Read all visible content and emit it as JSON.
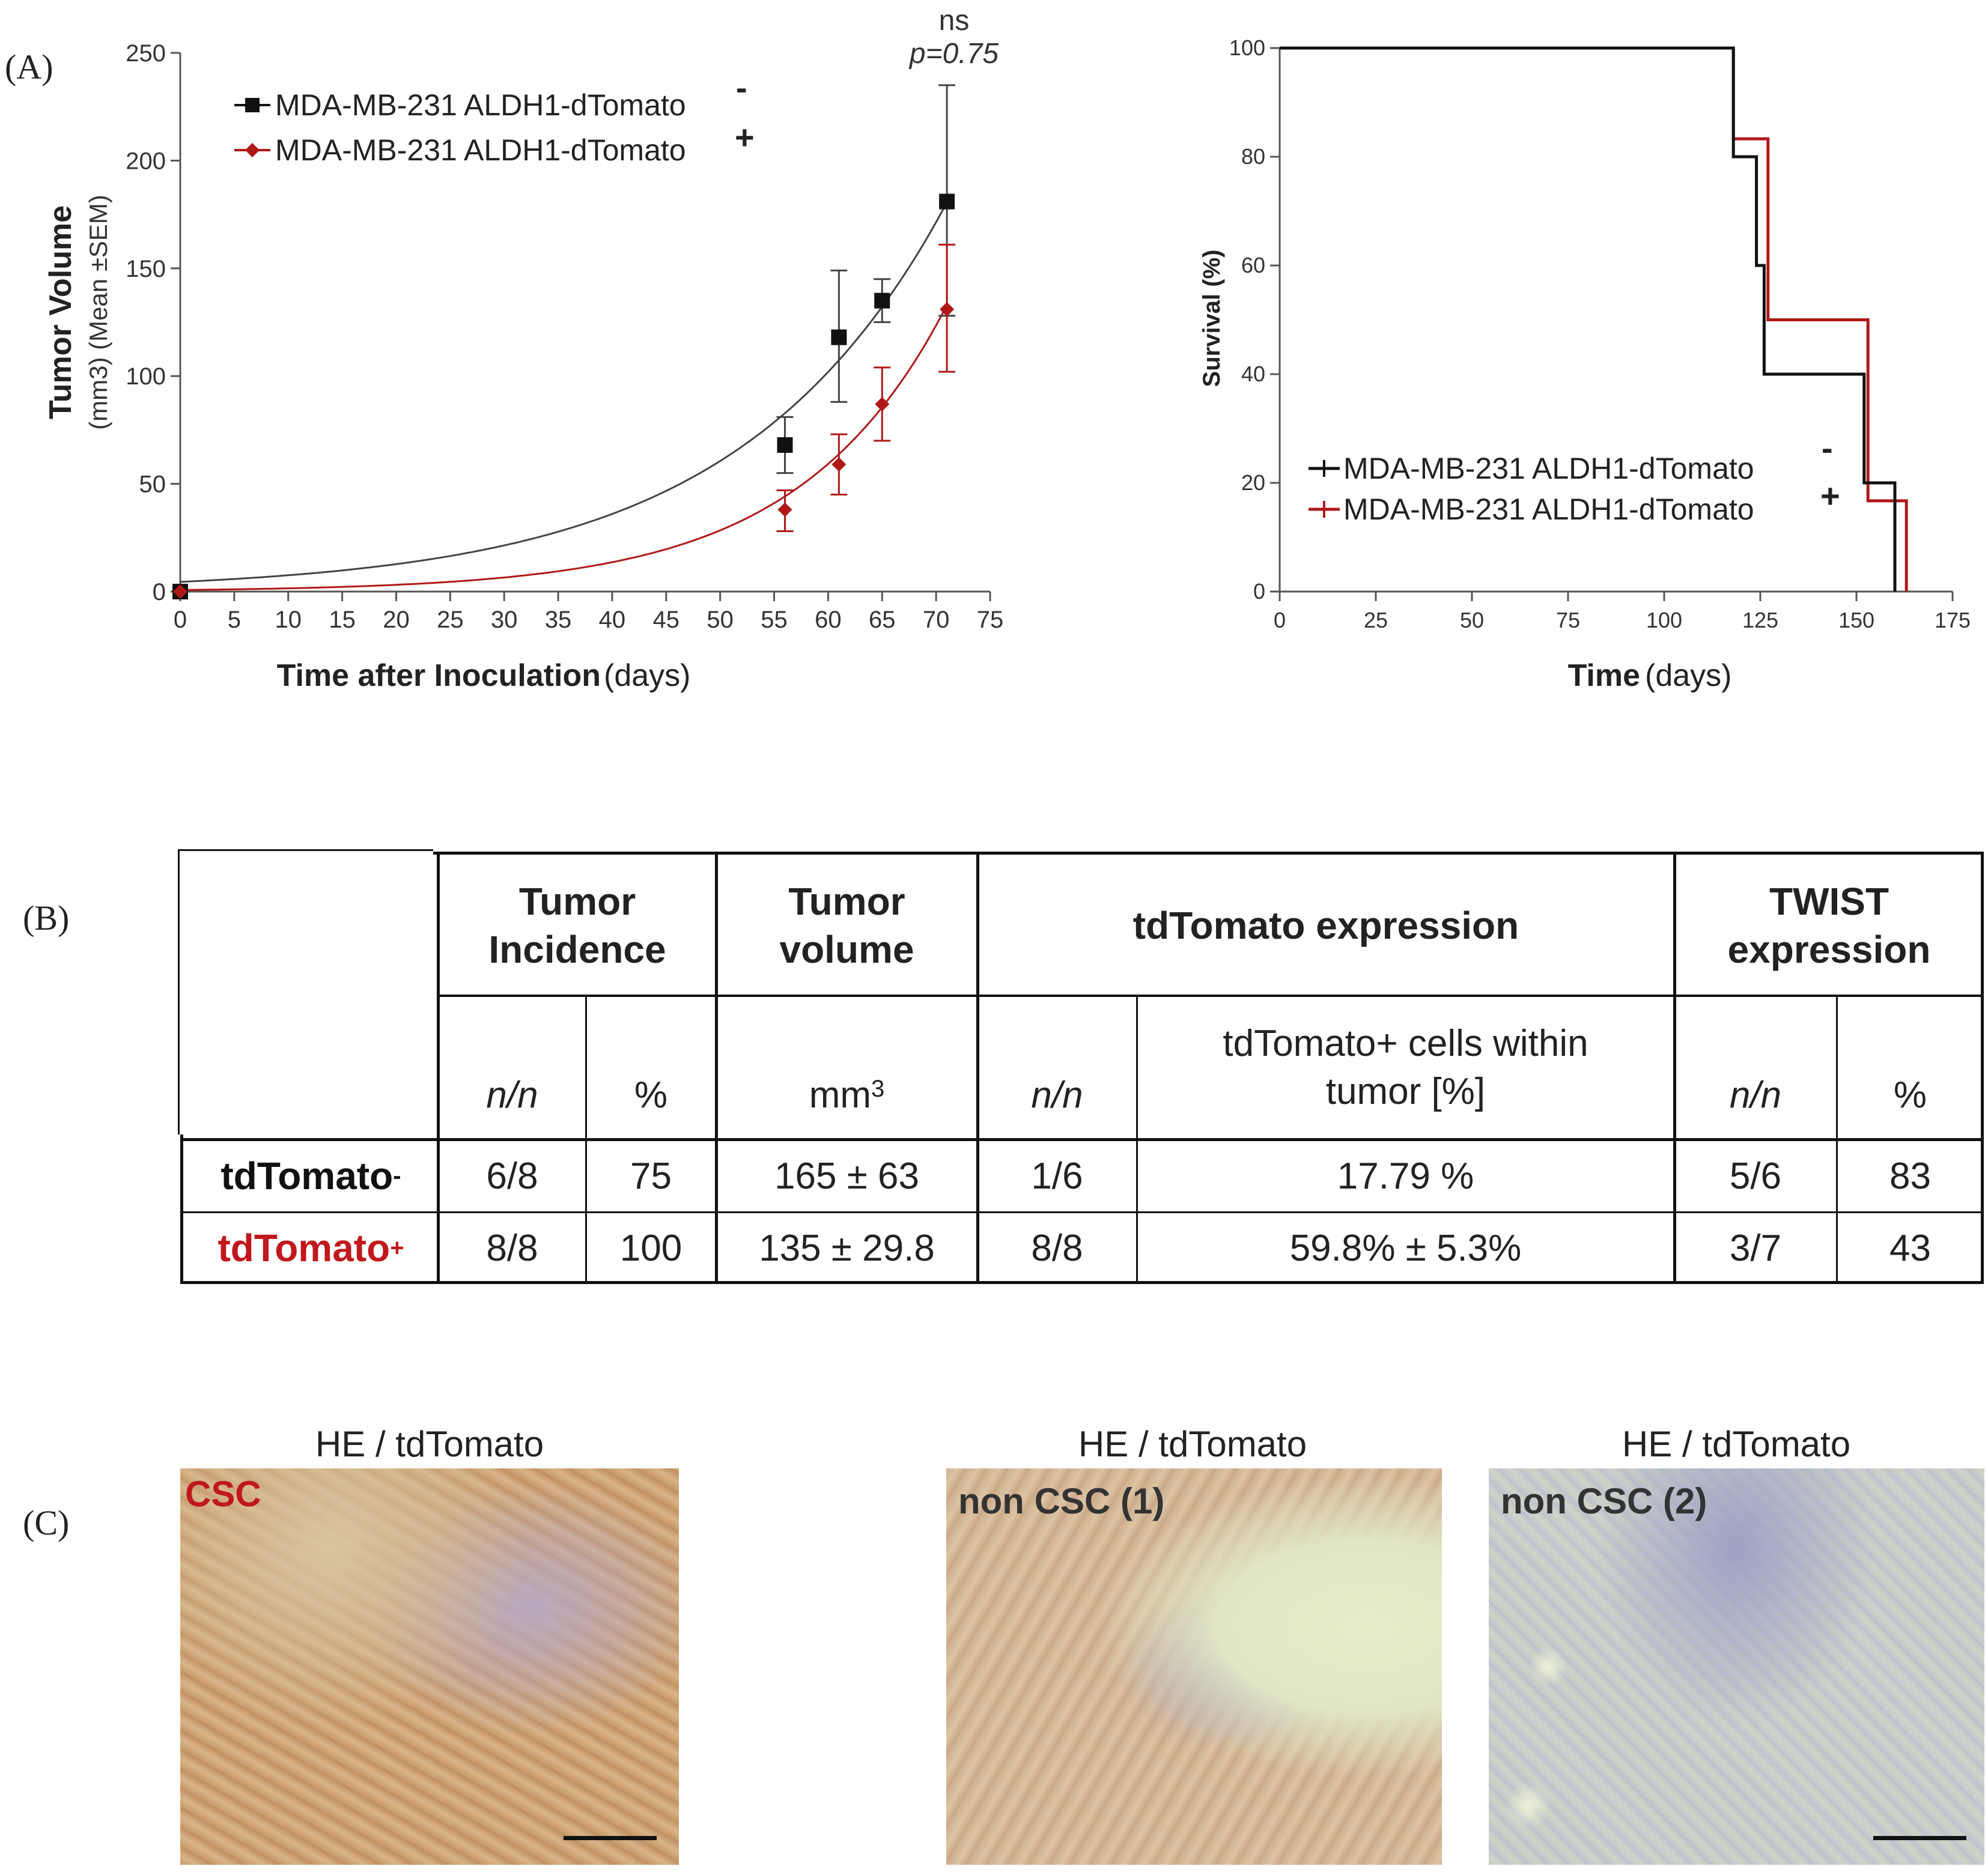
{
  "panels": {
    "a": "(A)",
    "b": "(B)",
    "c": "(C)"
  },
  "colors": {
    "neg": "#111111",
    "pos": "#b01818",
    "pos_text": "#c0181c"
  },
  "chart_data": [
    {
      "type": "line",
      "title": "",
      "xlabel_bold": "Time after Inoculation",
      "xlabel_unit": "(days)",
      "ylabel_bold": "Tumor Volume",
      "ylabel_unit": "(mm3) (Mean ±SEM)",
      "xlim": [
        0,
        75
      ],
      "ylim": [
        0,
        250
      ],
      "x_ticks": [
        "0",
        "5",
        "10",
        "15",
        "20",
        "25",
        "30",
        "35",
        "40",
        "45",
        "50",
        "55",
        "60",
        "65",
        "70",
        "75"
      ],
      "y_ticks": [
        "0",
        "50",
        "100",
        "150",
        "200",
        "250"
      ],
      "annotation_ns": "ns",
      "annotation_p": "p=0.75",
      "legend": [
        "MDA-MB-231 ALDH1-dTomato",
        "MDA-MB-231 ALDH1-dTomato"
      ],
      "legend_signs": [
        "-",
        "+"
      ],
      "series": [
        {
          "name": "MDA-MB-231 ALDH1-dTomato -",
          "marker": "square",
          "x": [
            0,
            56,
            61,
            65,
            71
          ],
          "y": [
            0,
            68,
            118,
            135,
            181
          ],
          "err_hi": [
            0,
            81,
            149,
            145,
            235
          ],
          "err_lo": [
            0,
            55,
            88,
            125,
            128
          ],
          "fit": {
            "a": 4.5,
            "k": 0.052
          }
        },
        {
          "name": "MDA-MB-231 ALDH1-dTomato +",
          "marker": "diamond",
          "x": [
            0,
            56,
            61,
            65,
            71
          ],
          "y": [
            0,
            38,
            59,
            87,
            131
          ],
          "err_hi": [
            0,
            47,
            73,
            104,
            161
          ],
          "err_lo": [
            0,
            28,
            45,
            70,
            102
          ],
          "fit": {
            "a": 0.72,
            "k": 0.0735
          }
        }
      ]
    },
    {
      "type": "line",
      "subtype": "kaplan-meier",
      "xlabel_bold": "Time",
      "xlabel_unit": "(days)",
      "ylabel": "Survival   (%)",
      "xlim": [
        0,
        175
      ],
      "ylim": [
        0,
        100
      ],
      "x_ticks": [
        "0",
        "25",
        "50",
        "75",
        "100",
        "125",
        "150",
        "175"
      ],
      "y_ticks": [
        "0",
        "20",
        "40",
        "60",
        "80",
        "100"
      ],
      "legend": [
        "MDA-MB-231 ALDH1-dTomato",
        "MDA-MB-231 ALDH1-dTomato"
      ],
      "legend_signs": [
        "-",
        "+"
      ],
      "series": [
        {
          "name": "MDA-MB-231 ALDH1-dTomato -",
          "steps": [
            [
              0,
              100
            ],
            [
              118,
              100
            ],
            [
              118,
              80
            ],
            [
              124,
              80
            ],
            [
              124,
              60
            ],
            [
              126,
              60
            ],
            [
              126,
              40
            ],
            [
              152,
              40
            ],
            [
              152,
              20
            ],
            [
              160,
              20
            ],
            [
              160,
              0
            ]
          ]
        },
        {
          "name": "MDA-MB-231 ALDH1-dTomato +",
          "steps": [
            [
              0,
              100
            ],
            [
              118,
              100
            ],
            [
              118,
              83.3
            ],
            [
              127,
              83.3
            ],
            [
              127,
              50
            ],
            [
              153,
              50
            ],
            [
              153,
              16.7
            ],
            [
              163,
              16.7
            ],
            [
              163,
              0
            ]
          ]
        }
      ]
    },
    {
      "type": "table",
      "headers": {
        "incidence": "Tumor Incidence",
        "volume": "Tumor volume",
        "tdtomato": "tdTomato expression",
        "twist": "TWIST expression"
      },
      "subheaders": {
        "nn1": "n/n",
        "pct1": "%",
        "mm3": "mm",
        "mm3_sup": "3",
        "nn2": "n/n",
        "cells": "tdTomato+ cells within tumor  [%]",
        "nn3": "n/n",
        "pct2": "%"
      },
      "rows": [
        {
          "label": "tdTomato",
          "sup": "-",
          "cells": [
            "6/8",
            "75",
            "165 ± 63",
            "1/6",
            "17.79 %",
            "5/6",
            "83"
          ]
        },
        {
          "label": "tdTomato",
          "sup": "+",
          "cells": [
            "8/8",
            "100",
            "135 ± 29.8",
            "8/8",
            "59.8% ± 5.3%",
            "3/7",
            "43"
          ]
        }
      ]
    }
  ],
  "images": [
    {
      "title": "HE / tdTomato",
      "tag": "CSC"
    },
    {
      "title": "HE / tdTomato",
      "tag": "non CSC (1)"
    },
    {
      "title": "HE / tdTomato",
      "tag": "non CSC (2)"
    }
  ]
}
